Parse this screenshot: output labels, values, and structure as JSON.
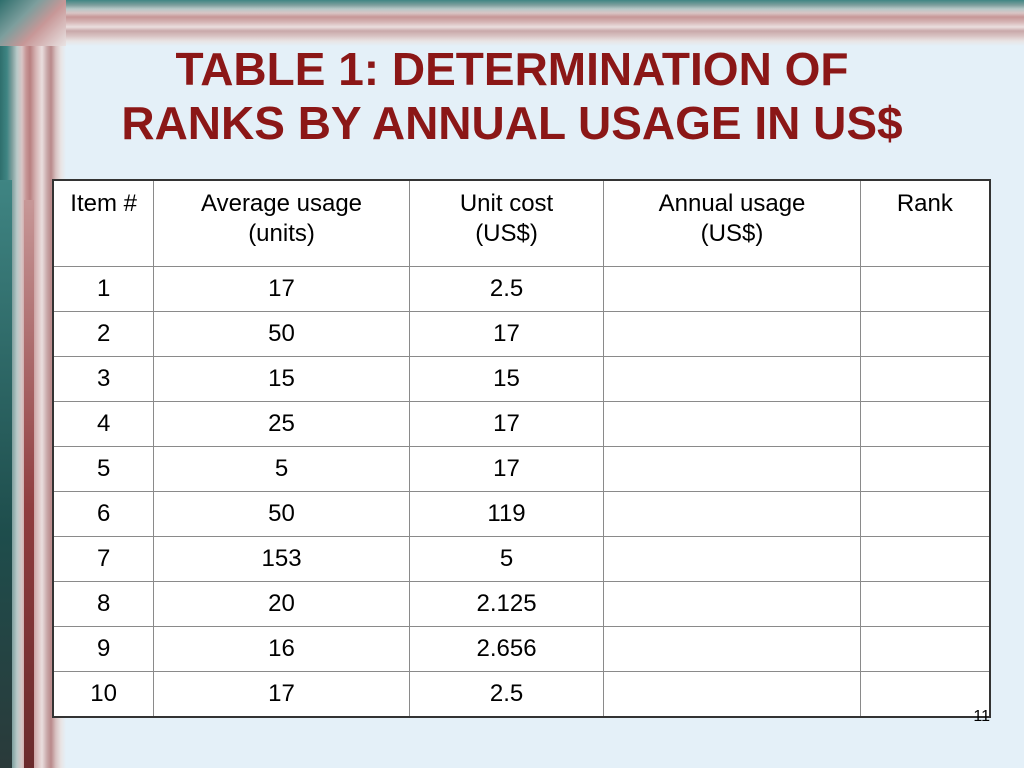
{
  "slide": {
    "title_line1": "TABLE 1: DETERMINATION OF",
    "title_line2": "RANKS BY ANNUAL USAGE IN US$",
    "slide_number": "11",
    "title_color": "#8b1717",
    "background_color": "#e4f0f8"
  },
  "table": {
    "headers": [
      {
        "line1": "Item #",
        "line2": ""
      },
      {
        "line1": "Average usage",
        "line2": "(units)"
      },
      {
        "line1": "Unit cost",
        "line2": "(US$)"
      },
      {
        "line1": "Annual usage",
        "line2": "(US$)"
      },
      {
        "line1": "Rank",
        "line2": ""
      }
    ],
    "rows": [
      [
        "1",
        "17",
        "2.5",
        "",
        ""
      ],
      [
        "2",
        "50",
        "17",
        "",
        ""
      ],
      [
        "3",
        "15",
        "15",
        "",
        ""
      ],
      [
        "4",
        "25",
        "17",
        "",
        ""
      ],
      [
        "5",
        "5",
        "17",
        "",
        ""
      ],
      [
        "6",
        "50",
        "119",
        "",
        ""
      ],
      [
        "7",
        "153",
        "5",
        "",
        ""
      ],
      [
        "8",
        "20",
        "2.125",
        "",
        ""
      ],
      [
        "9",
        "16",
        "2.656",
        "",
        ""
      ],
      [
        "10",
        "17",
        "2.5",
        "",
        ""
      ]
    ]
  }
}
